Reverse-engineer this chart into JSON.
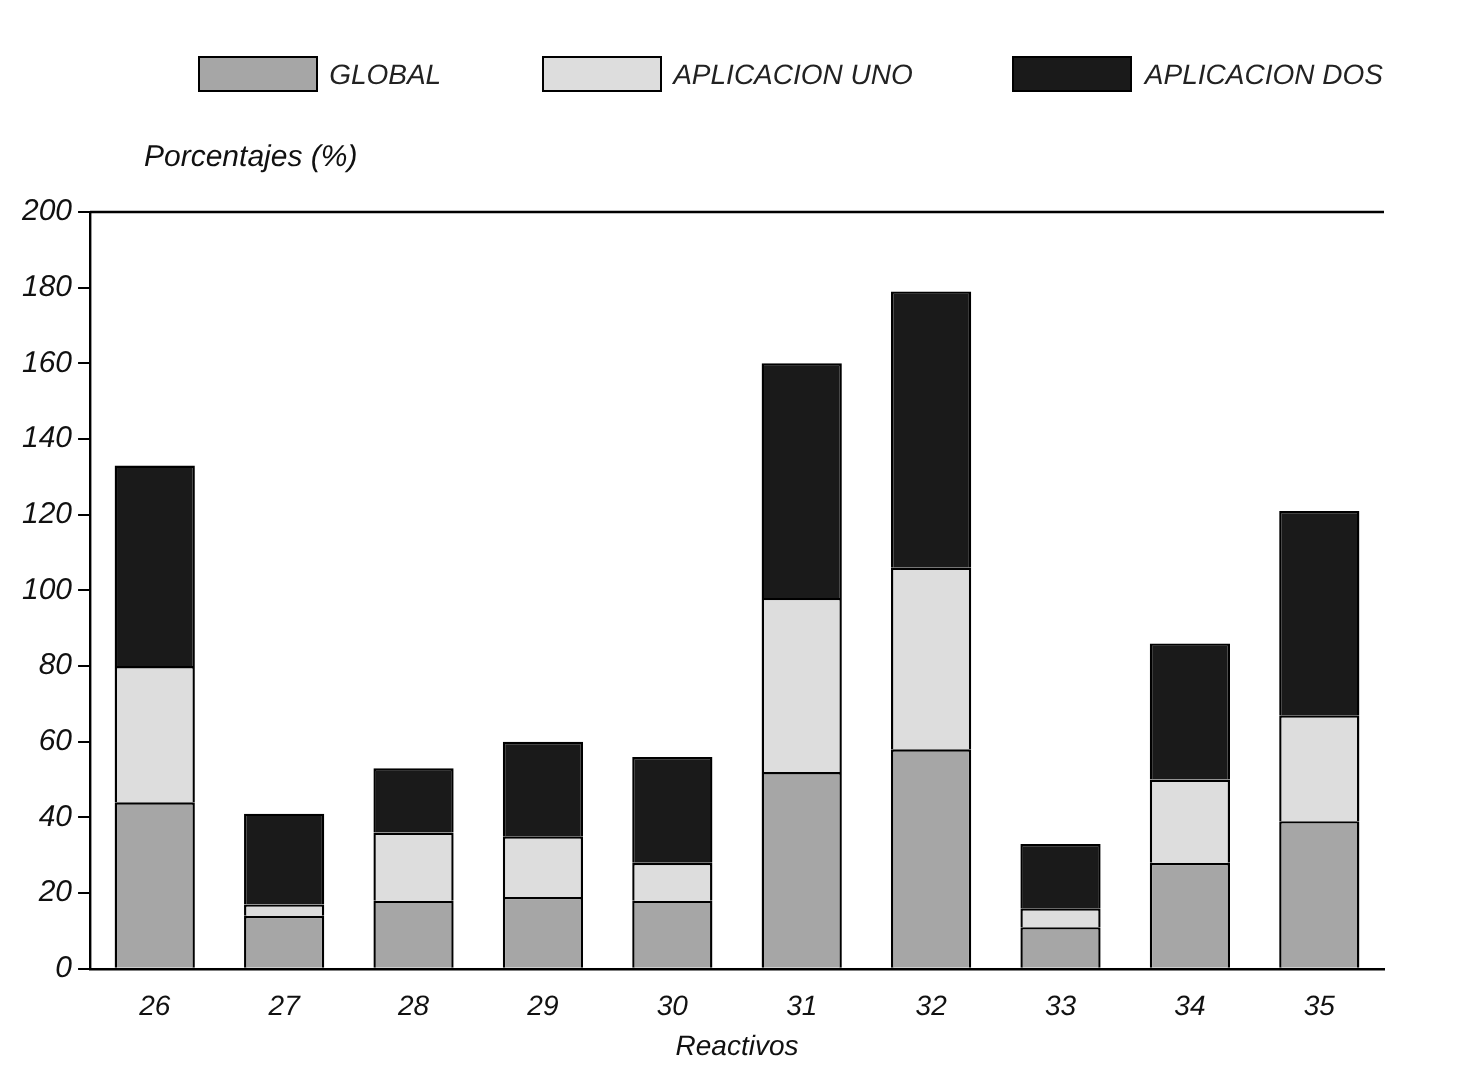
{
  "chart_data": {
    "type": "bar",
    "stacked": true,
    "xlabel": "Reactivos",
    "ylabel": "Porcentajes (%)",
    "categories": [
      "26",
      "27",
      "28",
      "29",
      "30",
      "31",
      "32",
      "33",
      "34",
      "35"
    ],
    "series": [
      {
        "name": "GLOBAL",
        "color": "#a6a6a6",
        "values": [
          44,
          14,
          18,
          19,
          18,
          52,
          58,
          11,
          28,
          39
        ]
      },
      {
        "name": "APLICACION UNO",
        "color": "#dddddd",
        "values": [
          36,
          3,
          18,
          16,
          10,
          46,
          48,
          5,
          22,
          28
        ]
      },
      {
        "name": "APLICACION DOS",
        "color": "#1a1a1a",
        "values": [
          53,
          24,
          17,
          25,
          28,
          62,
          73,
          17,
          36,
          54
        ]
      }
    ],
    "ylim": [
      0,
      200
    ],
    "yticks": [
      0,
      20,
      40,
      60,
      80,
      100,
      120,
      140,
      160,
      180,
      200
    ],
    "grid": false,
    "legend": "top"
  }
}
